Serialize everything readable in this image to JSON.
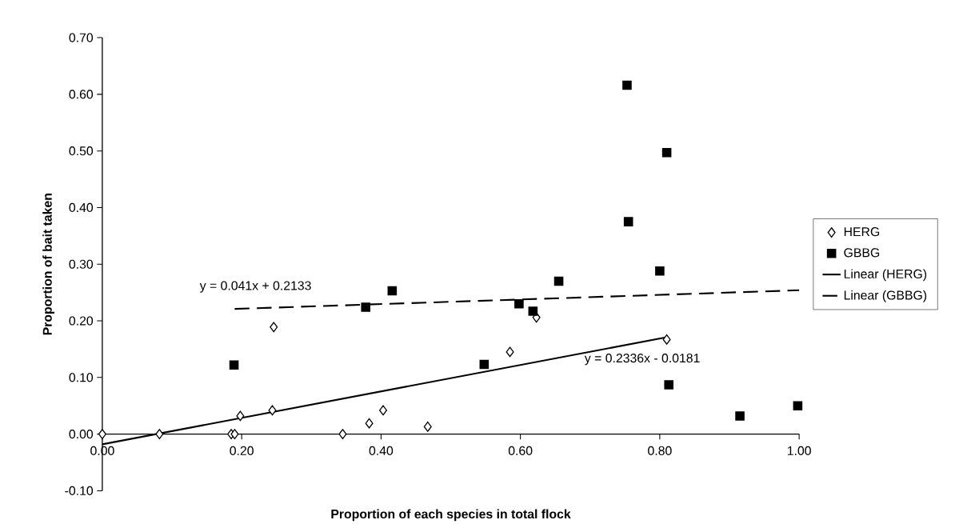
{
  "chart_data": {
    "type": "scatter",
    "xlabel": "Proportion of each species in total flock",
    "ylabel": "Proportion of bait taken",
    "xlim": [
      0,
      1
    ],
    "ylim": [
      -0.1,
      0.7
    ],
    "xticks": [
      {
        "value": 0,
        "label": "0.00"
      },
      {
        "value": 0.2,
        "label": "0.20"
      },
      {
        "value": 0.4,
        "label": "0.40"
      },
      {
        "value": 0.6,
        "label": "0.60"
      },
      {
        "value": 0.8,
        "label": "0.80"
      },
      {
        "value": 1,
        "label": "1.00"
      }
    ],
    "yticks": [
      {
        "value": -0.1,
        "label": "-0.10"
      },
      {
        "value": 0,
        "label": "0.00"
      },
      {
        "value": 0.1,
        "label": "0.10"
      },
      {
        "value": 0.2,
        "label": "0.20"
      },
      {
        "value": 0.3,
        "label": "0.30"
      },
      {
        "value": 0.4,
        "label": "0.40"
      },
      {
        "value": 0.5,
        "label": "0.50"
      },
      {
        "value": 0.6,
        "label": "0.60"
      },
      {
        "value": 0.7,
        "label": "0.70"
      }
    ],
    "legend": "right",
    "series": [
      {
        "name": "HERG",
        "marker": "diamond",
        "color": "#000000",
        "x": [
          0,
          0.082,
          0.185,
          0.19,
          0.198,
          0.246,
          0.244,
          0.345,
          0.383,
          0.403,
          0.467,
          0.585,
          0.623,
          0.81
        ],
        "values": [
          0,
          0,
          0,
          0,
          0.032,
          0.189,
          0.042,
          0,
          0.019,
          0.042,
          0.013,
          0.145,
          0.206,
          0.167
        ]
      },
      {
        "name": "GBBG",
        "marker": "square",
        "color": "#000000",
        "x": [
          0.189,
          0.378,
          0.416,
          0.548,
          0.598,
          0.618,
          0.655,
          0.753,
          0.755,
          0.8,
          0.81,
          0.813,
          0.915,
          0.998
        ],
        "values": [
          0.122,
          0.224,
          0.253,
          0.123,
          0.23,
          0.217,
          0.27,
          0.616,
          0.375,
          0.288,
          0.497,
          0.087,
          0.032,
          0.05
        ]
      },
      {
        "name": "Linear (HERG)",
        "type": "line",
        "line_style": "solid",
        "marker": "none",
        "color": "#000000",
        "x": [
          0,
          0.81
        ],
        "values": [
          -0.018,
          0.171
        ]
      },
      {
        "name": "Linear (GBBG)",
        "type": "line",
        "line_style": "dashed",
        "marker": "none",
        "color": "#000000",
        "x": [
          0.19,
          1.0
        ],
        "values": [
          0.221,
          0.254
        ]
      }
    ],
    "annotations": [
      "y = 0.041x + 0.2133",
      "y = 0.2336x - 0.0181"
    ]
  }
}
